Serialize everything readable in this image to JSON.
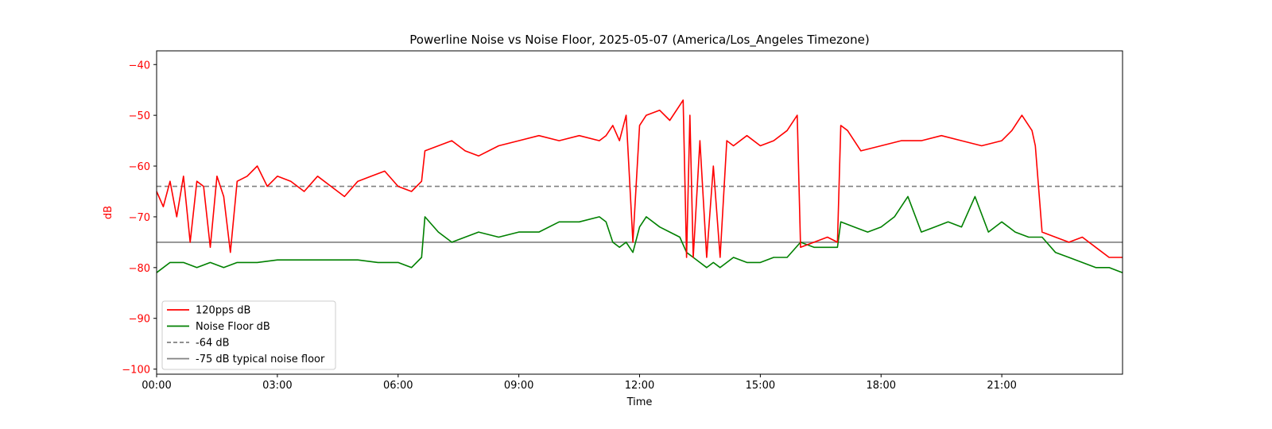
{
  "chart_data": {
    "type": "line",
    "title": "Powerline Noise vs Noise Floor, 2025-05-07 (America/Los_Angeles Timezone)",
    "xlabel": "Time",
    "ylabel": "dB",
    "xlim": [
      "00:00",
      "24:00"
    ],
    "ylim": [
      -101,
      -37.3
    ],
    "x_ticks": [
      "00:00",
      "03:00",
      "06:00",
      "09:00",
      "12:00",
      "15:00",
      "18:00",
      "21:00"
    ],
    "y_ticks": [
      -40,
      -50,
      -60,
      -70,
      -80,
      -90,
      -100
    ],
    "y_tick_labels": [
      "−40",
      "−50",
      "−60",
      "−70",
      "−80",
      "−90",
      "−100"
    ],
    "grid": false,
    "legend_position": "lower-left",
    "ylabel_color": "#ff0000",
    "ytick_color": "#ff0000",
    "series": [
      {
        "name": "120pps dB",
        "color": "#ff0000",
        "style": "solid",
        "x": [
          "00:00",
          "00:10",
          "00:20",
          "00:30",
          "00:40",
          "00:50",
          "01:00",
          "01:10",
          "01:20",
          "01:30",
          "01:40",
          "01:50",
          "02:00",
          "02:15",
          "02:30",
          "02:45",
          "03:00",
          "03:20",
          "03:40",
          "04:00",
          "04:20",
          "04:40",
          "05:00",
          "05:20",
          "05:40",
          "06:00",
          "06:20",
          "06:35",
          "06:40",
          "07:00",
          "07:20",
          "07:40",
          "08:00",
          "08:30",
          "09:00",
          "09:30",
          "10:00",
          "10:30",
          "11:00",
          "11:10",
          "11:20",
          "11:30",
          "11:40",
          "11:50",
          "12:00",
          "12:10",
          "12:30",
          "12:45",
          "13:00",
          "13:05",
          "13:10",
          "13:15",
          "13:20",
          "13:30",
          "13:40",
          "13:50",
          "14:00",
          "14:10",
          "14:20",
          "14:40",
          "15:00",
          "15:20",
          "15:40",
          "15:55",
          "16:00",
          "16:20",
          "16:40",
          "16:55",
          "17:00",
          "17:10",
          "17:30",
          "18:00",
          "18:30",
          "19:00",
          "19:30",
          "20:00",
          "20:30",
          "21:00",
          "21:15",
          "21:30",
          "21:45",
          "21:50",
          "22:00",
          "22:20",
          "22:40",
          "23:00",
          "23:20",
          "23:40",
          "24:00"
        ],
        "values": [
          -65,
          -68,
          -63,
          -70,
          -62,
          -75,
          -63,
          -64,
          -76,
          -62,
          -66,
          -77,
          -63,
          -62,
          -60,
          -64,
          -62,
          -63,
          -65,
          -62,
          -64,
          -66,
          -63,
          -62,
          -61,
          -64,
          -65,
          -63,
          -57,
          -56,
          -55,
          -57,
          -58,
          -56,
          -55,
          -54,
          -55,
          -54,
          -55,
          -54,
          -52,
          -55,
          -50,
          -75,
          -52,
          -50,
          -49,
          -51,
          -48,
          -47,
          -78,
          -50,
          -78,
          -55,
          -78,
          -60,
          -78,
          -55,
          -56,
          -54,
          -56,
          -55,
          -53,
          -50,
          -76,
          -75,
          -74,
          -75,
          -52,
          -53,
          -57,
          -56,
          -55,
          -55,
          -54,
          -55,
          -56,
          -55,
          -53,
          -50,
          -53,
          -56,
          -73,
          -74,
          -75,
          -74,
          -76,
          -78,
          -78
        ]
      },
      {
        "name": "Noise Floor dB",
        "color": "#008000",
        "style": "solid",
        "x": [
          "00:00",
          "00:20",
          "00:40",
          "01:00",
          "01:20",
          "01:40",
          "02:00",
          "02:30",
          "03:00",
          "03:30",
          "04:00",
          "04:30",
          "05:00",
          "05:30",
          "06:00",
          "06:20",
          "06:35",
          "06:40",
          "07:00",
          "07:20",
          "07:40",
          "08:00",
          "08:30",
          "09:00",
          "09:30",
          "10:00",
          "10:30",
          "11:00",
          "11:10",
          "11:20",
          "11:30",
          "11:40",
          "11:50",
          "12:00",
          "12:10",
          "12:30",
          "12:45",
          "13:00",
          "13:10",
          "13:20",
          "13:30",
          "13:40",
          "13:50",
          "14:00",
          "14:20",
          "14:40",
          "15:00",
          "15:20",
          "15:40",
          "16:00",
          "16:20",
          "16:40",
          "16:55",
          "17:00",
          "17:20",
          "17:40",
          "18:00",
          "18:20",
          "18:40",
          "19:00",
          "19:20",
          "19:40",
          "20:00",
          "20:20",
          "20:40",
          "21:00",
          "21:20",
          "21:40",
          "22:00",
          "22:20",
          "22:40",
          "23:00",
          "23:20",
          "23:40",
          "24:00"
        ],
        "values": [
          -81,
          -79,
          -79,
          -80,
          -79,
          -80,
          -79,
          -79,
          -78.5,
          -78.5,
          -78.5,
          -78.5,
          -78.5,
          -79,
          -79,
          -80,
          -78,
          -70,
          -73,
          -75,
          -74,
          -73,
          -74,
          -73,
          -73,
          -71,
          -71,
          -70,
          -71,
          -75,
          -76,
          -75,
          -77,
          -72,
          -70,
          -72,
          -73,
          -74,
          -77,
          -78,
          -79,
          -80,
          -79,
          -80,
          -78,
          -79,
          -79,
          -78,
          -78,
          -75,
          -76,
          -76,
          -76,
          -71,
          -72,
          -73,
          -72,
          -70,
          -66,
          -73,
          -72,
          -71,
          -72,
          -66,
          -73,
          -71,
          -73,
          -74,
          -74,
          -77,
          -78,
          -79,
          -80,
          -80,
          -81
        ]
      },
      {
        "name": "-64 dB",
        "color": "#808080",
        "style": "dashed",
        "x": [
          "00:00",
          "24:00"
        ],
        "values": [
          -64,
          -64
        ]
      },
      {
        "name": "-75 dB typical noise floor",
        "color": "#808080",
        "style": "solid",
        "x": [
          "00:00",
          "24:00"
        ],
        "values": [
          -75,
          -75
        ]
      }
    ]
  }
}
